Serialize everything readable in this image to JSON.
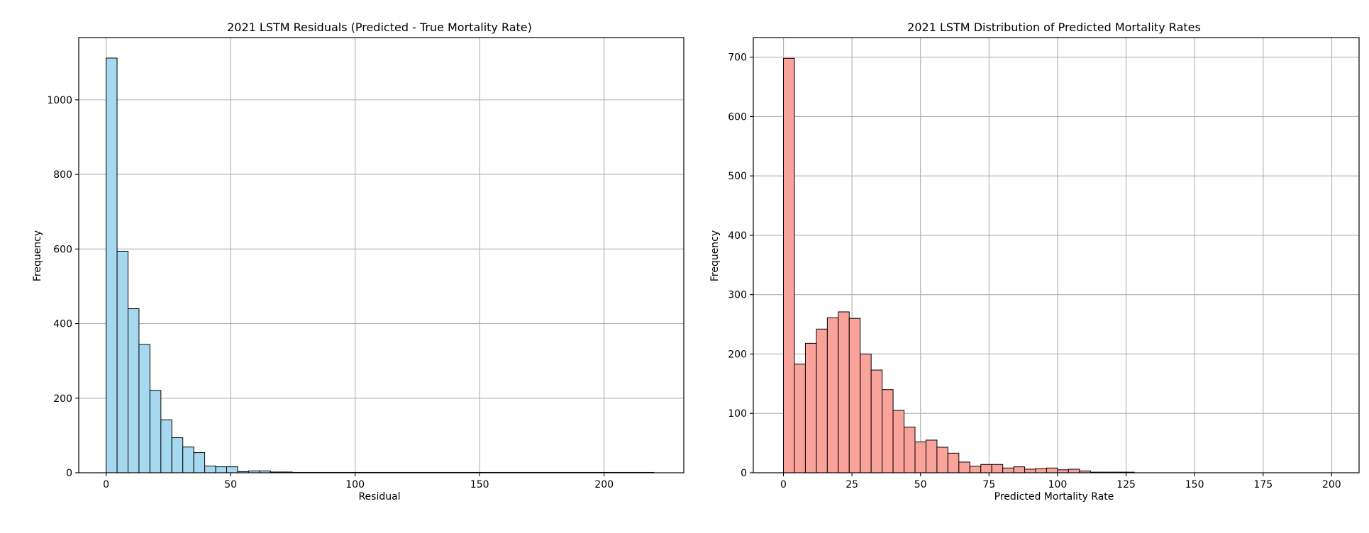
{
  "chart_data": [
    {
      "type": "bar",
      "title": "2021 LSTM Residuals (Predicted - True Mortality Rate)",
      "xlabel": "Residual",
      "ylabel": "Frequency",
      "xlim": [
        -11,
        232
      ],
      "ylim": [
        0,
        1167
      ],
      "xticks": [
        0,
        50,
        100,
        150,
        200
      ],
      "yticks": [
        0,
        200,
        400,
        600,
        800,
        1000
      ],
      "grid": true,
      "color": "#a6d9ef",
      "bin_start": 0,
      "bin_width": 4.4,
      "values": [
        1112,
        594,
        440,
        344,
        221,
        142,
        94,
        69,
        54,
        18,
        16,
        16,
        3,
        5,
        5,
        2,
        2,
        1,
        1,
        1,
        1,
        1,
        1,
        1,
        1,
        1,
        1,
        1,
        1,
        1,
        1,
        1,
        1,
        1,
        1,
        1,
        1,
        1,
        1,
        1,
        1,
        1,
        1,
        1,
        1,
        1,
        1,
        1,
        1,
        1
      ]
    },
    {
      "type": "bar",
      "title": "2021 LSTM Distribution of Predicted Mortality Rates",
      "xlabel": "Predicted Mortality Rate",
      "ylabel": "Frequency",
      "xlim": [
        -11,
        210
      ],
      "ylim": [
        0,
        733
      ],
      "xticks": [
        0,
        25,
        50,
        75,
        100,
        125,
        150,
        175,
        200
      ],
      "yticks": [
        0,
        100,
        200,
        300,
        400,
        500,
        600,
        700
      ],
      "grid": true,
      "color": "#faa39a",
      "bin_start": 0,
      "bin_width": 4.0,
      "values": [
        698,
        183,
        218,
        242,
        261,
        271,
        260,
        200,
        173,
        140,
        105,
        77,
        52,
        55,
        43,
        33,
        18,
        11,
        14,
        14,
        8,
        10,
        6,
        7,
        8,
        5,
        6,
        3,
        1,
        1,
        1,
        1,
        0,
        0,
        0,
        0,
        0,
        0,
        0,
        0,
        0,
        0,
        0,
        0,
        0,
        0,
        0,
        0,
        0,
        0
      ]
    }
  ]
}
